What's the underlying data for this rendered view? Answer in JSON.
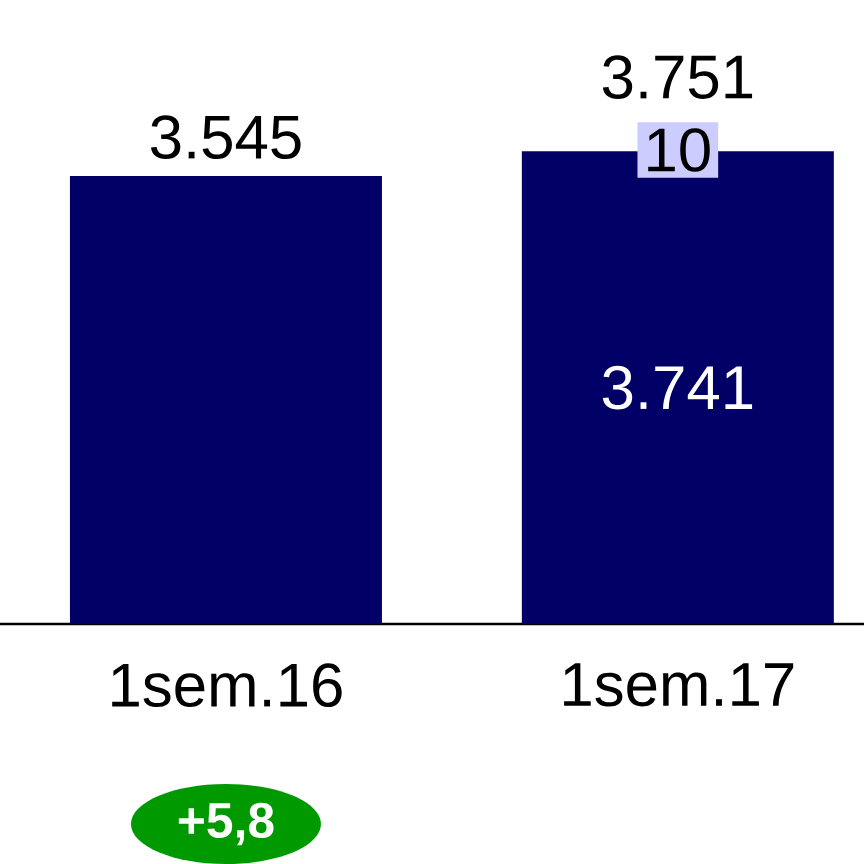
{
  "chart_data": {
    "type": "bar",
    "stacked": true,
    "categories": [
      "1sem.16",
      "1sem.17"
    ],
    "series": [
      {
        "color": "#000066",
        "values": [
          3545,
          3741
        ],
        "value_labels": [
          null,
          "3.741"
        ]
      },
      {
        "color": "#ccccff",
        "values": [
          null,
          10
        ],
        "value_labels": [
          null,
          "10"
        ]
      }
    ],
    "totals": [
      "3.545",
      "3.751"
    ],
    "annotations": [
      "+5,8"
    ]
  }
}
